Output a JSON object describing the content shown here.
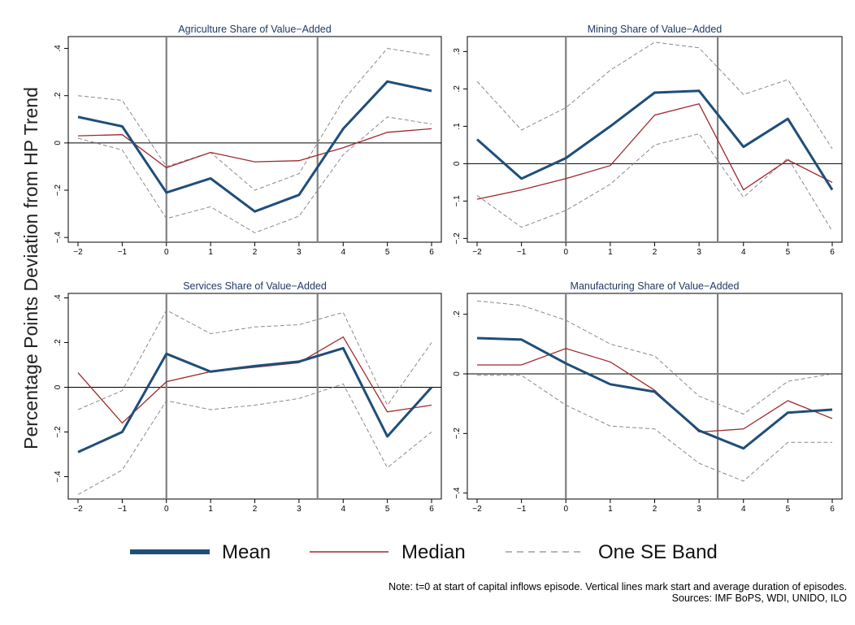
{
  "y_axis_title": "Percentage Points Deviation from HP Trend",
  "colors": {
    "mean": "#1f4e79",
    "median": "#a0282d",
    "band": "#8a8a8a",
    "title": "#1f3a64",
    "vline": "#808080"
  },
  "legend": {
    "mean_label": "Mean",
    "median_label": "Median",
    "band_label": "One SE Band"
  },
  "note": "Note: t=0 at start of capital inflows episode. Vertical lines mark start and average duration of episodes.",
  "sources": "Sources: IMF BoPS, WDI, UNIDO, ILO",
  "chart_data": [
    {
      "type": "line",
      "title": "Agriculture Share of Value−Added",
      "x": [
        -2,
        -1,
        0,
        1,
        2,
        3,
        4,
        5,
        6
      ],
      "xticks": [
        "−2",
        "−1",
        "0",
        "1",
        "2",
        "3",
        "4",
        "5",
        "6"
      ],
      "ylim": [
        -0.42,
        0.45
      ],
      "yticks": [
        -0.4,
        -0.2,
        0,
        0.2,
        0.4
      ],
      "ytick_labels": [
        "−.4",
        "−.2",
        "0",
        ".2",
        ".4"
      ],
      "vlines": [
        0,
        3.42
      ],
      "hline": 0,
      "series": [
        {
          "name": "Mean",
          "values": [
            0.11,
            0.07,
            -0.21,
            -0.15,
            -0.29,
            -0.22,
            0.06,
            0.26,
            0.22
          ]
        },
        {
          "name": "Median",
          "values": [
            0.03,
            0.035,
            -0.105,
            -0.04,
            -0.08,
            -0.075,
            -0.02,
            0.045,
            0.06
          ]
        },
        {
          "name": "Upper band",
          "values": [
            0.2,
            0.18,
            -0.1,
            -0.04,
            -0.2,
            -0.13,
            0.18,
            0.4,
            0.37
          ]
        },
        {
          "name": "Lower band",
          "values": [
            0.02,
            -0.03,
            -0.32,
            -0.27,
            -0.38,
            -0.31,
            -0.05,
            0.11,
            0.08
          ]
        }
      ]
    },
    {
      "type": "line",
      "title": "Mining Share of Value−Added",
      "x": [
        -2,
        -1,
        0,
        1,
        2,
        3,
        4,
        5,
        6
      ],
      "xticks": [
        "−2",
        "−1",
        "0",
        "1",
        "2",
        "3",
        "4",
        "5",
        "6"
      ],
      "ylim": [
        -0.21,
        0.34
      ],
      "yticks": [
        -0.2,
        -0.1,
        0,
        0.1,
        0.2,
        0.3
      ],
      "ytick_labels": [
        "−.2",
        "−.1",
        "0",
        ".1",
        ".2",
        ".3"
      ],
      "vlines": [
        0,
        3.42
      ],
      "hline": 0,
      "series": [
        {
          "name": "Mean",
          "values": [
            0.065,
            -0.04,
            0.015,
            0.1,
            0.19,
            0.195,
            0.045,
            0.12,
            -0.07
          ]
        },
        {
          "name": "Median",
          "values": [
            -0.095,
            -0.07,
            -0.04,
            -0.005,
            0.13,
            0.16,
            -0.07,
            0.01,
            -0.05
          ]
        },
        {
          "name": "Upper band",
          "values": [
            0.22,
            0.09,
            0.15,
            0.25,
            0.325,
            0.31,
            0.185,
            0.225,
            0.04
          ]
        },
        {
          "name": "Lower band",
          "values": [
            -0.085,
            -0.17,
            -0.125,
            -0.055,
            0.05,
            0.08,
            -0.09,
            0.015,
            -0.18
          ]
        }
      ]
    },
    {
      "type": "line",
      "title": "Services Share of Value−Added",
      "x": [
        -2,
        -1,
        0,
        1,
        2,
        3,
        4,
        5,
        6
      ],
      "xticks": [
        "−2",
        "−1",
        "0",
        "1",
        "2",
        "3",
        "4",
        "5",
        "6"
      ],
      "ylim": [
        -0.5,
        0.42
      ],
      "yticks": [
        -0.4,
        -0.2,
        0,
        0.2,
        0.4
      ],
      "ytick_labels": [
        "−.4",
        "−.2",
        "0",
        ".2",
        ".4"
      ],
      "vlines": [
        0,
        3.42
      ],
      "hline": 0,
      "series": [
        {
          "name": "Mean",
          "values": [
            -0.29,
            -0.2,
            0.15,
            0.07,
            0.095,
            0.115,
            0.175,
            -0.22,
            0.0
          ]
        },
        {
          "name": "Median",
          "values": [
            0.065,
            -0.16,
            0.025,
            0.07,
            0.09,
            0.11,
            0.225,
            -0.11,
            -0.08
          ]
        },
        {
          "name": "Upper band",
          "values": [
            -0.1,
            -0.015,
            0.345,
            0.24,
            0.27,
            0.28,
            0.335,
            -0.08,
            0.2
          ]
        },
        {
          "name": "Lower band",
          "values": [
            -0.48,
            -0.37,
            -0.06,
            -0.1,
            -0.08,
            -0.05,
            0.015,
            -0.36,
            -0.2
          ]
        }
      ]
    },
    {
      "type": "line",
      "title": "Manufacturing Share of Value−Added",
      "x": [
        -2,
        -1,
        0,
        1,
        2,
        3,
        4,
        5,
        6
      ],
      "xticks": [
        "−2",
        "−1",
        "0",
        "1",
        "2",
        "3",
        "4",
        "5",
        "6"
      ],
      "ylim": [
        -0.42,
        0.27
      ],
      "yticks": [
        -0.4,
        -0.2,
        0,
        0.2
      ],
      "ytick_labels": [
        "−.4",
        "−.2",
        "0",
        ".2"
      ],
      "vlines": [
        0,
        3.42
      ],
      "hline": 0,
      "series": [
        {
          "name": "Mean",
          "values": [
            0.12,
            0.115,
            0.035,
            -0.035,
            -0.06,
            -0.19,
            -0.25,
            -0.13,
            -0.12
          ]
        },
        {
          "name": "Median",
          "values": [
            0.03,
            0.03,
            0.085,
            0.04,
            -0.055,
            -0.195,
            -0.185,
            -0.09,
            -0.15
          ]
        },
        {
          "name": "Upper band",
          "values": [
            0.245,
            0.23,
            0.18,
            0.1,
            0.06,
            -0.075,
            -0.135,
            -0.025,
            0.0
          ]
        },
        {
          "name": "Lower band",
          "values": [
            -0.005,
            -0.005,
            -0.105,
            -0.175,
            -0.185,
            -0.3,
            -0.36,
            -0.23,
            -0.23
          ]
        }
      ]
    }
  ]
}
